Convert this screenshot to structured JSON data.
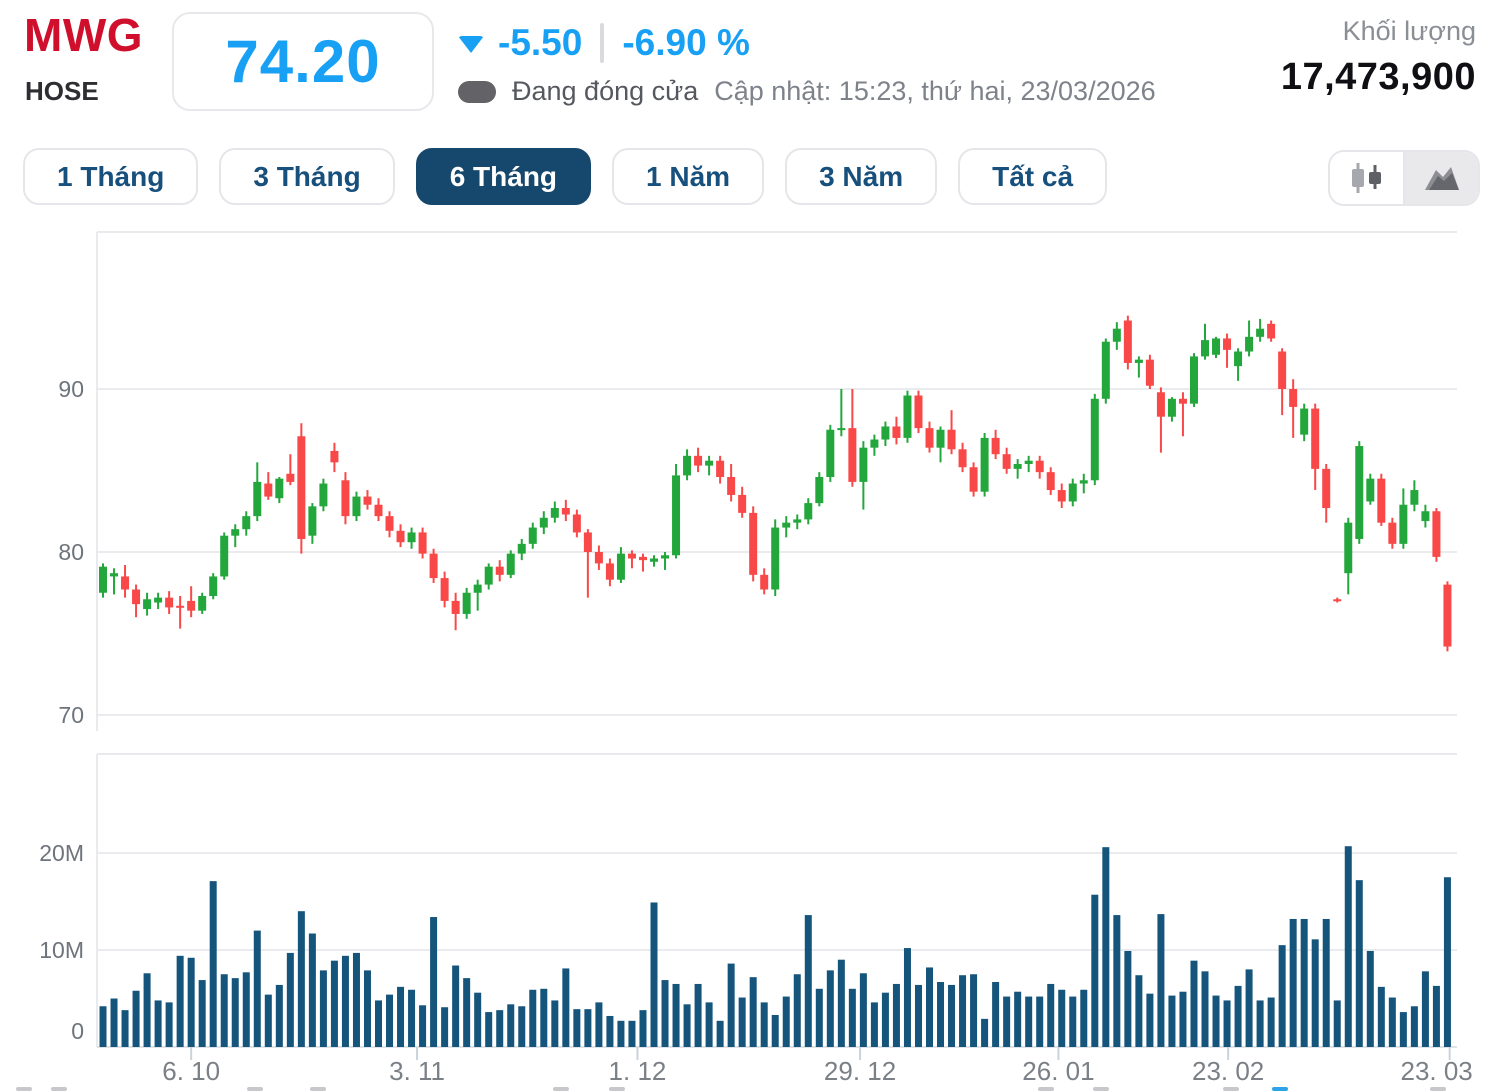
{
  "header": {
    "ticker": "MWG",
    "exchange": "HOSE",
    "price": "74.20",
    "change": "-5.50",
    "change_pct": "-6.90 %",
    "status": "Đang đóng cửa",
    "updated": "Cập nhật: 15:23, thứ hai, 23/03/2026",
    "volume_label": "Khối lượng",
    "volume_value": "17,473,900"
  },
  "toolbar": {
    "ranges": [
      {
        "label": "1 Tháng",
        "active": false
      },
      {
        "label": "3 Tháng",
        "active": false
      },
      {
        "label": "6 Tháng",
        "active": true
      },
      {
        "label": "1 Năm",
        "active": false
      },
      {
        "label": "3 Năm",
        "active": false
      },
      {
        "label": "Tất cả",
        "active": false
      }
    ],
    "chart_types": [
      {
        "name": "candlestick-icon",
        "active": false
      },
      {
        "name": "area-icon",
        "active": true
      }
    ]
  },
  "chart_data": {
    "type": "candlestick",
    "title": "MWG 6-month daily price with volume",
    "legend": [],
    "grid": true,
    "price_ticks": [
      {
        "label": "90",
        "value": 90
      },
      {
        "label": "80",
        "value": 80
      },
      {
        "label": "70",
        "value": 70
      }
    ],
    "volume_ticks": [
      {
        "label": "20M",
        "value": 20
      },
      {
        "label": "10M",
        "value": 10
      },
      {
        "label": "0",
        "value": 0
      }
    ],
    "x_ticks": [
      {
        "label": "6. 10",
        "i": 8
      },
      {
        "label": "3. 11",
        "i": 28.5
      },
      {
        "label": "1. 12",
        "i": 48.5
      },
      {
        "label": "29. 12",
        "i": 68.7
      },
      {
        "label": "26. 01",
        "i": 86.7
      },
      {
        "label": "23. 02",
        "i": 102.1
      },
      {
        "label": "23. 03",
        "i": 122.2
      }
    ],
    "price_range_shown": [
      69.0,
      99.5
    ],
    "colors": {
      "up": "#23a73c",
      "down": "#f94848",
      "volume": "#15547b"
    },
    "candles_ohlc": [
      [
        77.5,
        79.3,
        77.2,
        79.1
      ],
      [
        78.5,
        79.0,
        77.4,
        78.7
      ],
      [
        78.5,
        79.2,
        77.2,
        77.7
      ],
      [
        77.7,
        78.0,
        76.0,
        76.8
      ],
      [
        76.5,
        77.5,
        76.1,
        77.1
      ],
      [
        76.9,
        77.5,
        76.5,
        77.2
      ],
      [
        77.2,
        77.6,
        76.2,
        76.6
      ],
      [
        76.7,
        77.3,
        75.3,
        76.6
      ],
      [
        77.0,
        77.9,
        76.0,
        76.4
      ],
      [
        76.4,
        77.5,
        76.2,
        77.3
      ],
      [
        77.3,
        78.7,
        77.1,
        78.5
      ],
      [
        78.5,
        81.2,
        78.3,
        81.0
      ],
      [
        81.0,
        81.7,
        80.3,
        81.4
      ],
      [
        81.4,
        82.5,
        81.0,
        82.2
      ],
      [
        82.2,
        85.5,
        81.9,
        84.3
      ],
      [
        84.2,
        84.9,
        83.2,
        83.4
      ],
      [
        83.3,
        84.6,
        83.0,
        84.5
      ],
      [
        84.8,
        86.0,
        84.1,
        84.3
      ],
      [
        87.1,
        87.9,
        79.9,
        80.8
      ],
      [
        81.0,
        83.0,
        80.5,
        82.8
      ],
      [
        82.8,
        84.5,
        82.5,
        84.2
      ],
      [
        86.2,
        86.7,
        84.9,
        85.5
      ],
      [
        84.4,
        84.9,
        81.7,
        82.2
      ],
      [
        82.2,
        83.7,
        81.9,
        83.4
      ],
      [
        83.4,
        83.8,
        82.6,
        82.9
      ],
      [
        82.9,
        83.3,
        81.9,
        82.2
      ],
      [
        82.2,
        82.5,
        80.9,
        81.3
      ],
      [
        81.3,
        81.7,
        80.3,
        80.6
      ],
      [
        80.6,
        81.5,
        80.2,
        81.2
      ],
      [
        81.2,
        81.5,
        79.6,
        79.9
      ],
      [
        79.9,
        80.2,
        78.1,
        78.4
      ],
      [
        78.4,
        78.8,
        76.6,
        77.0
      ],
      [
        77.0,
        77.5,
        75.2,
        76.2
      ],
      [
        76.2,
        77.8,
        75.9,
        77.5
      ],
      [
        77.5,
        78.3,
        76.4,
        78.0
      ],
      [
        78.0,
        79.3,
        77.7,
        79.1
      ],
      [
        79.1,
        79.5,
        78.2,
        78.6
      ],
      [
        78.6,
        80.1,
        78.4,
        79.9
      ],
      [
        79.9,
        80.8,
        79.5,
        80.5
      ],
      [
        80.5,
        81.8,
        80.2,
        81.5
      ],
      [
        81.5,
        82.5,
        81.1,
        82.1
      ],
      [
        82.1,
        83.1,
        81.8,
        82.7
      ],
      [
        82.7,
        83.2,
        81.9,
        82.3
      ],
      [
        82.3,
        82.6,
        80.9,
        81.2
      ],
      [
        81.2,
        81.4,
        77.2,
        80.0
      ],
      [
        80.0,
        80.4,
        78.9,
        79.3
      ],
      [
        79.3,
        79.6,
        77.9,
        78.3
      ],
      [
        78.3,
        80.3,
        78.1,
        79.9
      ],
      [
        79.9,
        80.1,
        79.0,
        79.6
      ],
      [
        79.7,
        79.9,
        78.8,
        79.5
      ],
      [
        79.4,
        79.8,
        79.1,
        79.6
      ],
      [
        79.6,
        80.0,
        78.9,
        79.8
      ],
      [
        79.8,
        85.4,
        79.6,
        84.7
      ],
      [
        84.7,
        86.3,
        84.4,
        85.9
      ],
      [
        85.9,
        86.4,
        84.9,
        85.3
      ],
      [
        85.3,
        85.9,
        84.7,
        85.6
      ],
      [
        85.6,
        85.9,
        84.2,
        84.6
      ],
      [
        84.6,
        85.4,
        83.1,
        83.5
      ],
      [
        83.5,
        84.0,
        82.1,
        82.4
      ],
      [
        82.4,
        82.8,
        78.2,
        78.6
      ],
      [
        78.6,
        79.0,
        77.4,
        77.7
      ],
      [
        77.7,
        82.0,
        77.3,
        81.5
      ],
      [
        81.5,
        82.2,
        80.9,
        81.8
      ],
      [
        81.8,
        82.3,
        81.4,
        82.0
      ],
      [
        82.0,
        83.3,
        81.7,
        83.0
      ],
      [
        83.0,
        84.9,
        82.8,
        84.6
      ],
      [
        84.6,
        87.8,
        84.3,
        87.5
      ],
      [
        87.5,
        90.0,
        87.1,
        87.6
      ],
      [
        87.6,
        90.0,
        84.0,
        84.3
      ],
      [
        84.3,
        86.8,
        82.6,
        86.4
      ],
      [
        86.4,
        87.2,
        85.9,
        86.9
      ],
      [
        86.9,
        88.0,
        86.5,
        87.7
      ],
      [
        87.7,
        88.3,
        86.6,
        87.0
      ],
      [
        87.0,
        89.9,
        86.7,
        89.6
      ],
      [
        89.6,
        89.9,
        87.3,
        87.6
      ],
      [
        87.6,
        88.0,
        86.1,
        86.4
      ],
      [
        86.4,
        87.7,
        85.5,
        87.5
      ],
      [
        87.5,
        88.7,
        86.0,
        86.3
      ],
      [
        86.3,
        86.7,
        84.9,
        85.2
      ],
      [
        85.2,
        85.5,
        83.4,
        83.7
      ],
      [
        83.7,
        87.3,
        83.4,
        87.0
      ],
      [
        87.0,
        87.5,
        85.7,
        86.0
      ],
      [
        86.0,
        86.4,
        84.8,
        85.1
      ],
      [
        85.1,
        85.7,
        84.5,
        85.4
      ],
      [
        85.4,
        85.9,
        84.9,
        85.6
      ],
      [
        85.6,
        85.9,
        84.5,
        84.9
      ],
      [
        84.9,
        85.2,
        83.5,
        83.8
      ],
      [
        83.8,
        84.2,
        82.7,
        83.1
      ],
      [
        83.1,
        84.5,
        82.8,
        84.2
      ],
      [
        84.2,
        84.8,
        83.6,
        84.4
      ],
      [
        84.4,
        89.7,
        84.1,
        89.4
      ],
      [
        89.4,
        93.1,
        89.1,
        92.9
      ],
      [
        92.9,
        94.1,
        92.4,
        93.7
      ],
      [
        94.2,
        94.5,
        91.2,
        91.6
      ],
      [
        91.6,
        92.0,
        90.7,
        91.8
      ],
      [
        91.8,
        92.1,
        90.0,
        90.2
      ],
      [
        89.8,
        90.1,
        86.1,
        88.3
      ],
      [
        88.3,
        89.5,
        88.0,
        89.4
      ],
      [
        89.4,
        89.8,
        87.1,
        89.1
      ],
      [
        89.1,
        92.2,
        88.9,
        92.0
      ],
      [
        92.0,
        94.0,
        91.8,
        93.0
      ],
      [
        92.1,
        93.2,
        91.9,
        93.1
      ],
      [
        93.1,
        93.4,
        91.3,
        92.4
      ],
      [
        91.4,
        92.5,
        90.5,
        92.3
      ],
      [
        92.3,
        94.2,
        92.0,
        93.2
      ],
      [
        93.2,
        94.3,
        92.9,
        93.7
      ],
      [
        94.0,
        94.2,
        92.9,
        93.1
      ],
      [
        92.3,
        92.5,
        88.4,
        90.0
      ],
      [
        90.0,
        90.6,
        87.0,
        88.9
      ],
      [
        87.2,
        89.1,
        86.8,
        88.8
      ],
      [
        88.8,
        89.1,
        83.8,
        85.1
      ],
      [
        85.1,
        85.4,
        81.8,
        82.7
      ],
      [
        77.1,
        77.2,
        76.9,
        77.0
      ],
      [
        78.7,
        82.1,
        77.4,
        81.8
      ],
      [
        80.8,
        86.8,
        80.5,
        86.5
      ],
      [
        83.1,
        84.8,
        82.9,
        84.5
      ],
      [
        84.5,
        84.8,
        81.6,
        81.8
      ],
      [
        81.8,
        82.1,
        80.2,
        80.5
      ],
      [
        80.5,
        83.9,
        80.2,
        82.9
      ],
      [
        82.9,
        84.4,
        82.5,
        83.8
      ],
      [
        81.9,
        82.9,
        81.5,
        82.5
      ],
      [
        82.5,
        82.7,
        79.4,
        79.7
      ],
      [
        78.0,
        78.2,
        73.9,
        74.2
      ]
    ],
    "volumes_millions": [
      4.2,
      5.0,
      3.8,
      5.8,
      7.6,
      4.8,
      4.6,
      9.4,
      9.2,
      6.9,
      17.1,
      7.5,
      7.1,
      7.7,
      12.0,
      5.4,
      6.4,
      9.7,
      14.0,
      11.7,
      7.9,
      8.9,
      9.4,
      9.7,
      7.9,
      4.8,
      5.4,
      6.2,
      5.9,
      4.3,
      13.4,
      4.1,
      8.4,
      7.1,
      5.6,
      3.6,
      3.8,
      4.4,
      4.2,
      5.9,
      6.0,
      4.8,
      8.1,
      3.9,
      3.9,
      4.6,
      3.2,
      2.7,
      2.7,
      3.8,
      14.9,
      6.9,
      6.5,
      4.4,
      6.5,
      4.6,
      2.7,
      8.6,
      5.1,
      7.2,
      4.6,
      3.3,
      5.2,
      7.5,
      13.6,
      6.0,
      7.9,
      9.0,
      6.0,
      7.6,
      4.6,
      5.6,
      6.5,
      10.2,
      6.4,
      8.2,
      6.7,
      6.4,
      7.4,
      7.5,
      2.9,
      6.7,
      5.2,
      5.7,
      5.2,
      5.2,
      6.5,
      5.9,
      5.2,
      5.9,
      15.7,
      20.6,
      13.6,
      9.9,
      7.4,
      5.5,
      13.7,
      5.3,
      5.7,
      8.9,
      7.8,
      5.3,
      4.8,
      6.3,
      8.0,
      4.8,
      5.1,
      10.5,
      13.2,
      13.2,
      11.1,
      13.2,
      4.8,
      20.7,
      17.2,
      9.9,
      6.2,
      5.1,
      3.6,
      4.2,
      7.8,
      6.3,
      17.5
    ]
  }
}
